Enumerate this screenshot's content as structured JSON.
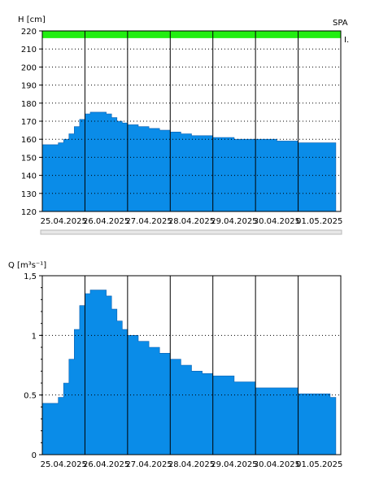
{
  "chart_data": [
    {
      "type": "area",
      "ylabel": "H [cm]",
      "corner_label": "SPA",
      "right_marker": "I.",
      "ylim": [
        120,
        220
      ],
      "yticks": [
        120,
        130,
        140,
        150,
        160,
        170,
        180,
        190,
        200,
        210,
        220
      ],
      "ytick_labels": [
        "120",
        "130",
        "140",
        "150",
        "160",
        "170",
        "180",
        "190",
        "200",
        "210",
        "220"
      ],
      "x_range": [
        "2025-04-25T00:00",
        "2025-05-02T00:00"
      ],
      "xtick_labels": [
        "25.04.2025",
        "26.04.2025",
        "27.04.2025",
        "28.04.2025",
        "29.04.2025",
        "30.04.2025",
        "01.05.2025"
      ],
      "threshold_band": {
        "color": "#22ee11",
        "from": 216,
        "to": 220
      },
      "fill_color": "#0a8ce8",
      "grid": true,
      "x": [
        "2025-04-25T00:00",
        "2025-04-25T06:00",
        "2025-04-25T09:00",
        "2025-04-25T12:00",
        "2025-04-25T15:00",
        "2025-04-25T18:00",
        "2025-04-25T21:00",
        "2025-04-26T00:00",
        "2025-04-26T03:00",
        "2025-04-26T06:00",
        "2025-04-26T09:00",
        "2025-04-26T12:00",
        "2025-04-26T15:00",
        "2025-04-26T18:00",
        "2025-04-26T21:00",
        "2025-04-27T00:00",
        "2025-04-27T06:00",
        "2025-04-27T12:00",
        "2025-04-27T18:00",
        "2025-04-28T00:00",
        "2025-04-28T06:00",
        "2025-04-28T12:00",
        "2025-04-28T18:00",
        "2025-04-29T00:00",
        "2025-04-29T06:00",
        "2025-04-29T12:00",
        "2025-04-29T18:00",
        "2025-04-30T00:00",
        "2025-04-30T12:00",
        "2025-05-01T00:00",
        "2025-05-01T12:00",
        "2025-05-01T18:00"
      ],
      "values": [
        157,
        157,
        158,
        160,
        163,
        167,
        171,
        174,
        175,
        175,
        175,
        174,
        172,
        170,
        169,
        168,
        167,
        166,
        165,
        164,
        163,
        162,
        162,
        161,
        161,
        160,
        160,
        160,
        159,
        158,
        158,
        158
      ]
    },
    {
      "type": "area",
      "ylabel": "Q [m³s⁻¹]",
      "ylim": [
        0,
        1.5
      ],
      "yticks": [
        0,
        0.5,
        1,
        1.5
      ],
      "ytick_labels": [
        "0",
        "0.5",
        "1",
        "1,5"
      ],
      "x_range": [
        "2025-04-25T00:00",
        "2025-05-02T00:00"
      ],
      "xtick_labels": [
        "25.04.2025",
        "26.04.2025",
        "27.04.2025",
        "28.04.2025",
        "29.04.2025",
        "30.04.2025",
        "01.05.2025"
      ],
      "fill_color": "#0a8ce8",
      "grid": true,
      "x": [
        "2025-04-25T00:00",
        "2025-04-25T06:00",
        "2025-04-25T09:00",
        "2025-04-25T12:00",
        "2025-04-25T15:00",
        "2025-04-25T18:00",
        "2025-04-25T21:00",
        "2025-04-26T00:00",
        "2025-04-26T03:00",
        "2025-04-26T06:00",
        "2025-04-26T09:00",
        "2025-04-26T12:00",
        "2025-04-26T15:00",
        "2025-04-26T18:00",
        "2025-04-26T21:00",
        "2025-04-27T00:00",
        "2025-04-27T06:00",
        "2025-04-27T12:00",
        "2025-04-27T18:00",
        "2025-04-28T00:00",
        "2025-04-28T06:00",
        "2025-04-28T12:00",
        "2025-04-28T18:00",
        "2025-04-29T00:00",
        "2025-04-29T06:00",
        "2025-04-29T12:00",
        "2025-04-29T18:00",
        "2025-04-30T00:00",
        "2025-04-30T12:00",
        "2025-05-01T00:00",
        "2025-05-01T12:00",
        "2025-05-01T18:00"
      ],
      "values": [
        0.43,
        0.43,
        0.48,
        0.6,
        0.8,
        1.05,
        1.25,
        1.35,
        1.38,
        1.38,
        1.38,
        1.33,
        1.22,
        1.12,
        1.05,
        1.0,
        0.95,
        0.9,
        0.85,
        0.8,
        0.75,
        0.7,
        0.68,
        0.66,
        0.66,
        0.61,
        0.61,
        0.56,
        0.56,
        0.51,
        0.51,
        0.48
      ]
    }
  ]
}
